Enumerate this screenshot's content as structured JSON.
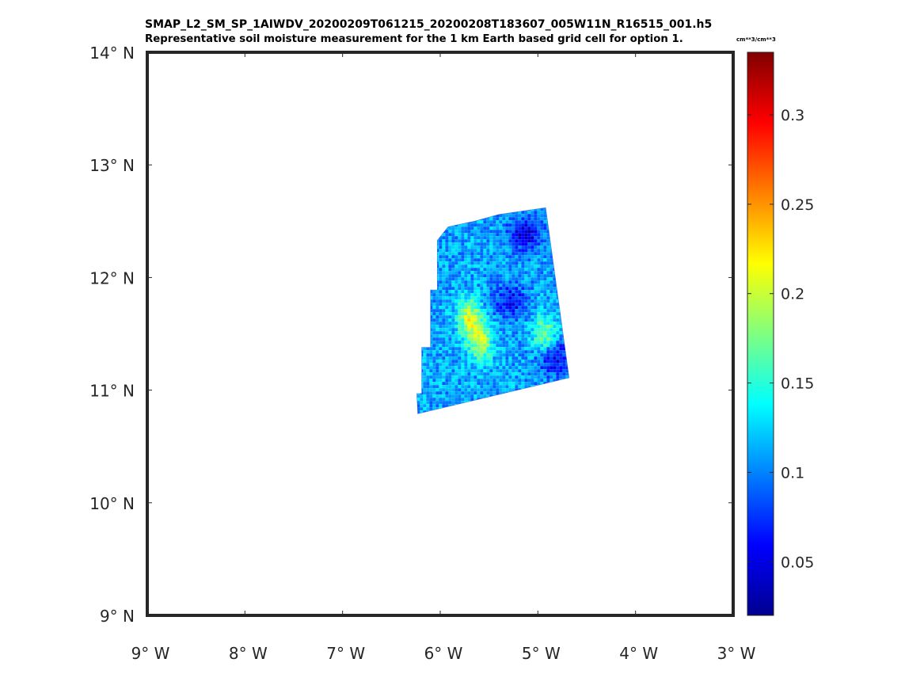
{
  "title": {
    "line1": "SMAP_L2_SM_SP_1AIWDV_20200209T061215_20200208T183607_005W11N_R16515_001.h5",
    "line2": "Representative soil moisture measurement for the 1 km Earth based grid cell for option 1."
  },
  "units": "cm**3/cm**3",
  "map": {
    "lon_range": [
      -9,
      -3
    ],
    "lat_range": [
      9,
      14
    ],
    "lon_ticks": [
      {
        "value": -9,
        "label": "9° W"
      },
      {
        "value": -8,
        "label": "8° W"
      },
      {
        "value": -7,
        "label": "7° W"
      },
      {
        "value": -6,
        "label": "6° W"
      },
      {
        "value": -5,
        "label": "5° W"
      },
      {
        "value": -4,
        "label": "4° W"
      },
      {
        "value": -3,
        "label": "3° W"
      }
    ],
    "lat_ticks": [
      {
        "value": 14,
        "label": "14° N"
      },
      {
        "value": 13,
        "label": "13° N"
      },
      {
        "value": 12,
        "label": "12° N"
      },
      {
        "value": 11,
        "label": "11° N"
      },
      {
        "value": 10,
        "label": "10° N"
      },
      {
        "value": 9,
        "label": "9° N"
      }
    ],
    "swath_outline": [
      [
        -6.23,
        10.79
      ],
      [
        -4.68,
        11.11
      ],
      [
        -4.92,
        12.62
      ],
      [
        -5.4,
        12.56
      ],
      [
        -5.65,
        12.5
      ],
      [
        -5.92,
        12.45
      ],
      [
        -6.03,
        12.33
      ],
      [
        -6.03,
        11.89
      ],
      [
        -6.1,
        11.89
      ],
      [
        -6.1,
        11.38
      ],
      [
        -6.19,
        11.38
      ],
      [
        -6.19,
        10.97
      ],
      [
        -6.24,
        10.97
      ]
    ],
    "value_notes": {
      "background_mean": 0.11,
      "wet_zones": [
        {
          "lon": -5.72,
          "lat": 11.65,
          "value": 0.2
        },
        {
          "lon": -5.6,
          "lat": 11.45,
          "value": 0.19
        },
        {
          "lon": -4.95,
          "lat": 11.5,
          "value": 0.18
        }
      ],
      "dry_zones": [
        {
          "lon": -5.15,
          "lat": 12.4,
          "value": 0.05
        },
        {
          "lon": -5.3,
          "lat": 11.8,
          "value": 0.06
        },
        {
          "lon": -4.85,
          "lat": 11.3,
          "value": 0.05
        }
      ]
    }
  },
  "colorbar": {
    "colormap": "jet",
    "range": [
      0.02,
      0.335
    ],
    "ticks": [
      {
        "value": 0.05,
        "label": "0.05"
      },
      {
        "value": 0.1,
        "label": "0.1"
      },
      {
        "value": 0.15,
        "label": "0.15"
      },
      {
        "value": 0.2,
        "label": "0.2"
      },
      {
        "value": 0.25,
        "label": "0.25"
      },
      {
        "value": 0.3,
        "label": "0.3"
      }
    ]
  }
}
